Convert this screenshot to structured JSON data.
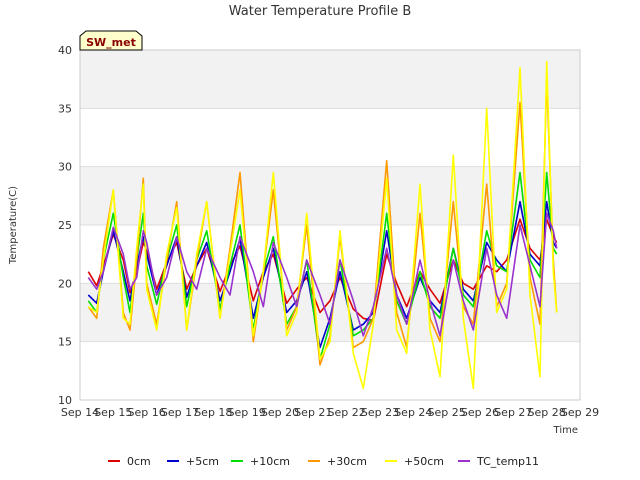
{
  "chart_data": {
    "type": "line",
    "title": "Water Temperature Profile B",
    "xlabel": "Time",
    "ylabel": "Temperature(C)",
    "badge": "SW_met",
    "ylim": [
      10,
      40
    ],
    "yticks": [
      10,
      15,
      20,
      25,
      30,
      35,
      40
    ],
    "xlim": [
      14,
      29
    ],
    "xticks": [
      {
        "v": 14,
        "label": "Sep 14"
      },
      {
        "v": 15,
        "label": "Sep 15"
      },
      {
        "v": 16,
        "label": "Sep 16"
      },
      {
        "v": 17,
        "label": "Sep 17"
      },
      {
        "v": 18,
        "label": "Sep 18"
      },
      {
        "v": 19,
        "label": "Sep 19"
      },
      {
        "v": 20,
        "label": "Sep 20"
      },
      {
        "v": 21,
        "label": "Sep 21"
      },
      {
        "v": 22,
        "label": "Sep 22"
      },
      {
        "v": 23,
        "label": "Sep 23"
      },
      {
        "v": 24,
        "label": "Sep 24"
      },
      {
        "v": 25,
        "label": "Sep 25"
      },
      {
        "v": 26,
        "label": "Sep 26"
      },
      {
        "v": 27,
        "label": "Sep 27"
      },
      {
        "v": 28,
        "label": "Sep 28"
      },
      {
        "v": 29,
        "label": "Sep 29"
      }
    ],
    "grid": true,
    "legend_position": "bottom",
    "series": [
      {
        "name": "0cm",
        "color": "#dd0000",
        "x": [
          14.25,
          14.5,
          14.7,
          15.0,
          15.3,
          15.5,
          15.7,
          15.9,
          16.0,
          16.3,
          16.6,
          16.9,
          17.2,
          17.5,
          17.8,
          18.2,
          18.5,
          18.8,
          19.2,
          19.5,
          19.8,
          20.2,
          20.5,
          20.8,
          21.2,
          21.5,
          21.8,
          22.2,
          22.5,
          22.8,
          23.2,
          23.5,
          23.8,
          24.2,
          24.5,
          24.8,
          25.2,
          25.5,
          25.8,
          26.2,
          26.5,
          26.8,
          27.2,
          27.5,
          27.8,
          28.0,
          28.2,
          28.3
        ],
        "y": [
          21.0,
          19.8,
          21.5,
          24.2,
          22.0,
          19.2,
          21.0,
          23.5,
          22.8,
          19.5,
          21.8,
          23.5,
          19.5,
          21.5,
          23.0,
          19.3,
          21.5,
          23.2,
          18.5,
          21.0,
          22.5,
          18.3,
          19.5,
          20.5,
          17.5,
          18.5,
          20.5,
          17.8,
          17.0,
          16.8,
          22.5,
          20.0,
          18.0,
          21.0,
          19.5,
          18.3,
          22.0,
          20.0,
          19.5,
          21.5,
          21.0,
          22.0,
          25.5,
          23.0,
          22.0,
          25.5,
          24.0,
          23.5
        ]
      },
      {
        "name": "+5cm",
        "color": "#0000cc",
        "x": [
          14.25,
          14.5,
          14.7,
          15.0,
          15.3,
          15.5,
          15.7,
          15.9,
          16.0,
          16.3,
          16.6,
          16.9,
          17.2,
          17.5,
          17.8,
          18.2,
          18.5,
          18.8,
          19.2,
          19.5,
          19.8,
          20.2,
          20.5,
          20.8,
          21.2,
          21.5,
          21.8,
          22.2,
          22.5,
          22.8,
          23.2,
          23.5,
          23.8,
          24.2,
          24.5,
          24.8,
          25.2,
          25.5,
          25.8,
          26.2,
          26.5,
          26.8,
          27.2,
          27.5,
          27.8,
          28.0,
          28.2,
          28.3
        ],
        "y": [
          19.0,
          18.3,
          21.0,
          24.5,
          21.0,
          18.5,
          21.5,
          24.0,
          22.5,
          19.0,
          21.5,
          24.0,
          18.8,
          21.5,
          23.5,
          18.5,
          21.0,
          23.8,
          17.0,
          20.5,
          23.0,
          17.5,
          18.5,
          21.0,
          14.5,
          17.0,
          21.0,
          16.0,
          16.5,
          17.5,
          24.5,
          19.0,
          17.0,
          20.5,
          18.5,
          17.5,
          23.0,
          19.5,
          18.5,
          23.5,
          22.0,
          21.0,
          27.0,
          22.5,
          21.5,
          27.0,
          23.5,
          23.0
        ]
      },
      {
        "name": "+10cm",
        "color": "#00dd00",
        "x": [
          14.25,
          14.5,
          14.7,
          15.0,
          15.3,
          15.5,
          15.7,
          15.9,
          16.0,
          16.3,
          16.6,
          16.9,
          17.2,
          17.5,
          17.8,
          18.2,
          18.5,
          18.8,
          19.2,
          19.5,
          19.8,
          20.2,
          20.5,
          20.8,
          21.2,
          21.5,
          21.8,
          22.2,
          22.5,
          22.8,
          23.2,
          23.5,
          23.8,
          24.2,
          24.5,
          24.8,
          25.2,
          25.5,
          25.8,
          26.2,
          26.5,
          26.8,
          27.2,
          27.5,
          27.8,
          28.0,
          28.2,
          28.3
        ],
        "y": [
          18.5,
          17.5,
          22.0,
          26.0,
          20.5,
          17.5,
          22.0,
          26.0,
          21.5,
          18.2,
          22.0,
          25.0,
          18.0,
          22.0,
          24.5,
          17.8,
          21.5,
          25.0,
          16.0,
          21.0,
          24.0,
          16.5,
          18.0,
          22.0,
          13.5,
          16.5,
          22.0,
          15.5,
          16.0,
          17.0,
          26.0,
          18.5,
          16.5,
          21.0,
          18.0,
          17.0,
          23.0,
          19.0,
          18.0,
          24.5,
          21.5,
          21.0,
          29.5,
          22.0,
          20.5,
          29.5,
          23.0,
          22.5
        ]
      },
      {
        "name": "+30cm",
        "color": "#ff9900",
        "x": [
          14.25,
          14.5,
          14.7,
          15.0,
          15.3,
          15.5,
          15.7,
          15.9,
          16.0,
          16.3,
          16.6,
          16.9,
          17.2,
          17.5,
          17.8,
          18.2,
          18.5,
          18.8,
          19.2,
          19.5,
          19.8,
          20.2,
          20.5,
          20.8,
          21.2,
          21.5,
          21.8,
          22.2,
          22.5,
          22.8,
          23.2,
          23.5,
          23.8,
          24.2,
          24.5,
          24.8,
          25.2,
          25.5,
          25.8,
          26.2,
          26.5,
          26.8,
          27.2,
          27.5,
          27.8,
          28.0,
          28.2,
          28.3
        ],
        "y": [
          18.0,
          17.0,
          23.0,
          28.0,
          17.5,
          16.0,
          22.0,
          29.0,
          20.0,
          16.5,
          22.0,
          27.0,
          16.0,
          22.0,
          27.0,
          17.0,
          23.0,
          29.5,
          15.0,
          21.0,
          28.0,
          16.0,
          18.0,
          25.0,
          13.0,
          15.5,
          24.0,
          14.5,
          15.0,
          17.0,
          30.5,
          17.5,
          14.5,
          26.0,
          17.0,
          15.0,
          27.0,
          18.0,
          16.5,
          28.5,
          18.0,
          20.0,
          35.5,
          20.5,
          16.5,
          37.5,
          22.0,
          17.5
        ]
      },
      {
        "name": "+50cm",
        "color": "#ffff00",
        "x": [
          14.25,
          14.5,
          14.7,
          15.0,
          15.3,
          15.5,
          15.7,
          15.9,
          16.0,
          16.3,
          16.6,
          16.9,
          17.2,
          17.5,
          17.8,
          18.2,
          18.5,
          18.8,
          19.2,
          19.5,
          19.8,
          20.2,
          20.5,
          20.8,
          21.2,
          21.5,
          21.8,
          22.2,
          22.5,
          22.8,
          23.2,
          23.5,
          23.8,
          24.2,
          24.5,
          24.8,
          25.2,
          25.5,
          25.8,
          26.2,
          26.5,
          26.8,
          27.2,
          27.5,
          27.8,
          28.0,
          28.2,
          28.3
        ],
        "y": [
          18.0,
          17.5,
          22.0,
          28.0,
          17.0,
          16.5,
          23.0,
          28.5,
          19.5,
          16.0,
          22.5,
          26.5,
          16.0,
          22.5,
          27.0,
          17.0,
          22.5,
          28.0,
          15.5,
          21.0,
          29.5,
          15.5,
          17.5,
          26.0,
          13.5,
          15.0,
          24.5,
          14.0,
          11.0,
          16.5,
          29.0,
          16.0,
          14.0,
          28.5,
          16.0,
          12.0,
          31.0,
          17.0,
          11.0,
          35.0,
          17.5,
          19.5,
          38.5,
          19.0,
          12.0,
          39.0,
          21.0,
          17.5
        ]
      },
      {
        "name": "TC_temp11",
        "color": "#9933cc",
        "x": [
          14.25,
          14.5,
          14.7,
          15.0,
          15.3,
          15.5,
          15.7,
          15.9,
          16.0,
          16.3,
          16.6,
          16.9,
          17.2,
          17.5,
          17.8,
          18.2,
          18.5,
          18.8,
          19.2,
          19.5,
          19.8,
          20.2,
          20.5,
          20.8,
          21.2,
          21.5,
          21.8,
          22.2,
          22.5,
          22.8,
          23.2,
          23.5,
          23.8,
          24.2,
          24.5,
          24.8,
          25.2,
          25.5,
          25.8,
          26.2,
          26.5,
          26.8,
          27.2,
          27.5,
          27.8,
          28.0,
          28.2,
          28.3
        ],
        "y": [
          20.5,
          19.5,
          21.0,
          24.8,
          22.5,
          19.5,
          20.5,
          24.5,
          23.5,
          19.0,
          20.5,
          24.0,
          21.0,
          19.5,
          23.0,
          20.5,
          19.0,
          24.0,
          21.0,
          18.0,
          23.5,
          20.5,
          18.0,
          22.0,
          19.0,
          16.5,
          22.0,
          18.5,
          15.5,
          18.0,
          23.0,
          19.0,
          16.5,
          22.0,
          18.5,
          15.5,
          22.0,
          18.5,
          16.0,
          23.0,
          19.0,
          17.0,
          25.0,
          21.5,
          18.0,
          26.0,
          24.5,
          23.0
        ]
      }
    ]
  }
}
